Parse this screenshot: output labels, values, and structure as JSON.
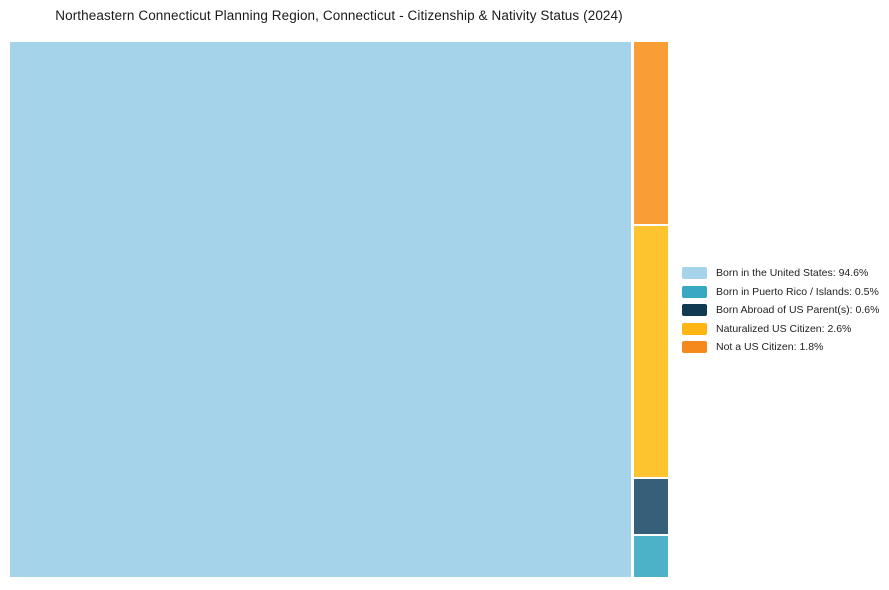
{
  "chart_data": {
    "type": "treemap",
    "title": "Northeastern Connecticut Planning Region, Connecticut - Citizenship & Nativity Status (2024)",
    "legend_position": "right",
    "series": [
      {
        "label": "Born in the United States",
        "value_pct": 94.6,
        "display": "Born in the United States: 94.6%",
        "color": "#A5D3EA",
        "map_color": "#A5D3EA"
      },
      {
        "label": "Born in Puerto Rico / Islands",
        "value_pct": 0.5,
        "display": "Born in Puerto Rico / Islands: 0.5%",
        "color": "#39A8C2",
        "map_color": "#4CB2C8"
      },
      {
        "label": "Born Abroad of US Parent(s)",
        "value_pct": 0.6,
        "display": "Born Abroad of US Parent(s): 0.6%",
        "color": "#103A52",
        "map_color": "#36607A"
      },
      {
        "label": "Naturalized US Citizen",
        "value_pct": 2.6,
        "display": "Naturalized US Citizen: 2.6%",
        "color": "#FFB612",
        "map_color": "#FEC42F"
      },
      {
        "label": "Not a US Citizen",
        "value_pct": 1.8,
        "display": "Not a US Citizen: 1.8%",
        "color": "#F6891E",
        "map_color": "#F99D35"
      }
    ]
  }
}
